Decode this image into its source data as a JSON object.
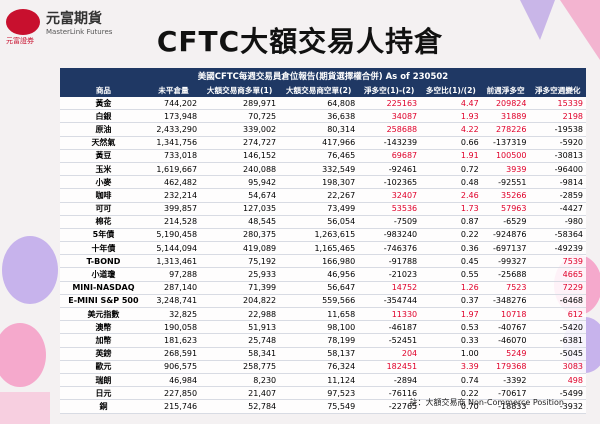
{
  "header": {
    "logo_name": "元富期貨",
    "logo_en": "MasterLink Futures",
    "logo_sub": "元富證券",
    "title": "CFTC大額交易人持倉"
  },
  "table": {
    "caption": "美國CFTC每週交易員倉位報告(期貨選擇權合併) As of  230502",
    "columns": [
      "商品",
      "未平倉量",
      "大額交易商多單(1)",
      "大額交易商空單(2)",
      "淨多空(1)-(2)",
      "多空比(1)/(2)",
      "前週淨多空",
      "淨多空週變化"
    ],
    "rows": [
      [
        "黃金",
        "744,202",
        "289,971",
        "64,808",
        "225163",
        "4.47",
        "209824",
        "15339"
      ],
      [
        "白銀",
        "173,948",
        "70,725",
        "36,638",
        "34087",
        "1.93",
        "31889",
        "2198"
      ],
      [
        "原油",
        "2,433,290",
        "339,002",
        "80,314",
        "258688",
        "4.22",
        "278226",
        "-19538"
      ],
      [
        "天然氣",
        "1,341,756",
        "274,727",
        "417,966",
        "-143239",
        "0.66",
        "-137319",
        "-5920"
      ],
      [
        "黃豆",
        "733,018",
        "146,152",
        "76,465",
        "69687",
        "1.91",
        "100500",
        "-30813"
      ],
      [
        "玉米",
        "1,619,667",
        "240,088",
        "332,549",
        "-92461",
        "0.72",
        "3939",
        "-96400"
      ],
      [
        "小麥",
        "462,482",
        "95,942",
        "198,307",
        "-102365",
        "0.48",
        "-92551",
        "-9814"
      ],
      [
        "咖啡",
        "232,214",
        "54,674",
        "22,267",
        "32407",
        "2.46",
        "35266",
        "-2859"
      ],
      [
        "可可",
        "399,857",
        "127,035",
        "73,499",
        "53536",
        "1.73",
        "57963",
        "-4427"
      ],
      [
        "棉花",
        "214,528",
        "48,545",
        "56,054",
        "-7509",
        "0.87",
        "-6529",
        "-980"
      ],
      [
        "5年債",
        "5,190,458",
        "280,375",
        "1,263,615",
        "-983240",
        "0.22",
        "-924876",
        "-58364"
      ],
      [
        "十年債",
        "5,144,094",
        "419,089",
        "1,165,465",
        "-746376",
        "0.36",
        "-697137",
        "-49239"
      ],
      [
        "T-BOND",
        "1,313,461",
        "75,192",
        "166,980",
        "-91788",
        "0.45",
        "-99327",
        "7539"
      ],
      [
        "小道瓊",
        "97,288",
        "25,933",
        "46,956",
        "-21023",
        "0.55",
        "-25688",
        "4665"
      ],
      [
        "MINI-NASDAQ",
        "287,140",
        "71,399",
        "56,647",
        "14752",
        "1.26",
        "7523",
        "7229"
      ],
      [
        "E-MINI S&P 500",
        "3,248,741",
        "204,822",
        "559,566",
        "-354744",
        "0.37",
        "-348276",
        "-6468"
      ],
      [
        "美元指數",
        "32,825",
        "22,988",
        "11,658",
        "11330",
        "1.97",
        "10718",
        "612"
      ],
      [
        "澳幣",
        "190,058",
        "51,913",
        "98,100",
        "-46187",
        "0.53",
        "-40767",
        "-5420"
      ],
      [
        "加幣",
        "181,623",
        "25,748",
        "78,199",
        "-52451",
        "0.33",
        "-46070",
        "-6381"
      ],
      [
        "英鎊",
        "268,591",
        "58,341",
        "58,137",
        "204",
        "1.00",
        "5249",
        "-5045"
      ],
      [
        "歐元",
        "906,575",
        "258,775",
        "76,324",
        "182451",
        "3.39",
        "179368",
        "3083"
      ],
      [
        "瑞朗",
        "46,984",
        "8,230",
        "11,124",
        "-2894",
        "0.74",
        "-3392",
        "498"
      ],
      [
        "日元",
        "227,850",
        "21,407",
        "97,523",
        "-76116",
        "0.22",
        "-70617",
        "-5499"
      ],
      [
        "銅",
        "215,746",
        "52,784",
        "75,549",
        "-22765",
        "0.70",
        "-18833",
        "-3932"
      ]
    ],
    "note": "註：大額交易商 Non-Commerce Position"
  }
}
